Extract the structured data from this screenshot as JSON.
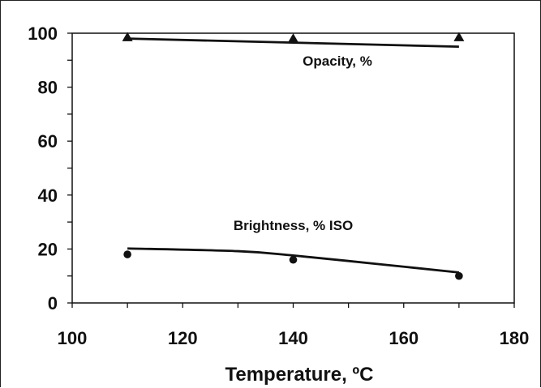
{
  "chart_data": {
    "type": "line",
    "title": "",
    "xlabel": "Temperature, ºC",
    "ylabel": "",
    "xlim": [
      100,
      180
    ],
    "ylim": [
      0,
      100
    ],
    "x_ticks": [
      100,
      120,
      140,
      160,
      180
    ],
    "y_ticks": [
      0,
      20,
      40,
      60,
      80,
      100
    ],
    "x_minor_step": 10,
    "y_minor_step": 10,
    "grid": false,
    "legend": "none",
    "series": [
      {
        "name": "Opacity, %",
        "marker": "triangle",
        "points": [
          {
            "x": 110,
            "y": 98.5
          },
          {
            "x": 140,
            "y": 98
          },
          {
            "x": 170,
            "y": 98.5
          }
        ],
        "fit": [
          {
            "x": 110,
            "y": 98
          },
          {
            "x": 170,
            "y": 95
          }
        ]
      },
      {
        "name": "Brightness, % ISO",
        "marker": "circle",
        "points": [
          {
            "x": 110,
            "y": 18
          },
          {
            "x": 140,
            "y": 16
          },
          {
            "x": 170,
            "y": 10
          }
        ],
        "fit": [
          {
            "x": 110,
            "y": 20.2
          },
          {
            "x": 130,
            "y": 19.2
          },
          {
            "x": 140,
            "y": 17.6
          },
          {
            "x": 155,
            "y": 14.5
          },
          {
            "x": 170,
            "y": 11.3
          }
        ]
      }
    ],
    "annotations": [
      {
        "text": "Opacity, %",
        "x": 148,
        "y": 88
      },
      {
        "text": "Brightness, % ISO",
        "x": 140,
        "y": 27
      }
    ],
    "colors": {
      "line": "#111111",
      "background": "#ffffff"
    }
  }
}
